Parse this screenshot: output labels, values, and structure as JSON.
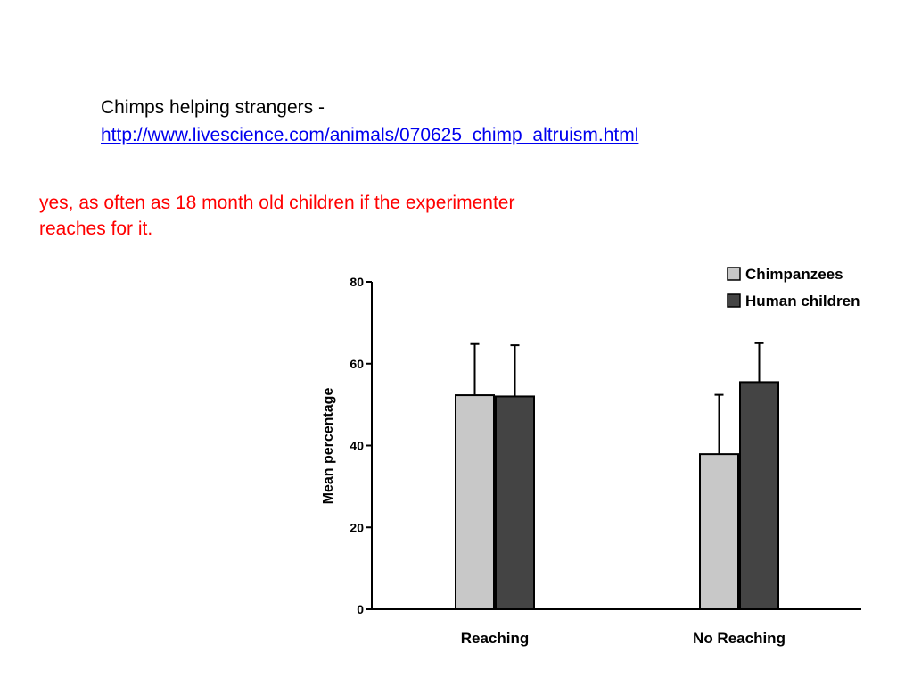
{
  "slide": {
    "title": "Chimps helping strangers -",
    "link": "http://www.livescience.com/animals/070625_chimp_altruism.html",
    "answer": " yes, as often as 18 month old children if the experimenter reaches for it."
  },
  "colors": {
    "chimpanzees": "#c8c8c8",
    "human_children": "#444444",
    "answer_text": "#ff0000",
    "link": "#0000ee"
  },
  "chart_data": {
    "type": "bar",
    "categories": [
      "Reaching",
      "No Reaching"
    ],
    "series": [
      {
        "name": "Chimpanzees",
        "values": [
          52.3,
          37.9
        ],
        "error": [
          12.5,
          14.5
        ]
      },
      {
        "name": "Human children",
        "values": [
          52.0,
          55.5
        ],
        "error": [
          12.5,
          9.5
        ]
      }
    ],
    "ylabel": "Mean percentage",
    "xlabel": "",
    "ylim": [
      0,
      80
    ],
    "yticks": [
      "0",
      "20",
      "40",
      "60",
      "80"
    ],
    "legend": "top-right",
    "grid": false
  }
}
